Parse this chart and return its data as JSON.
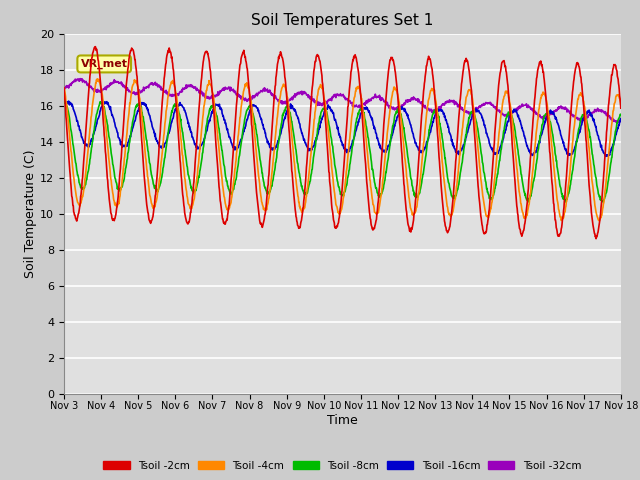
{
  "title": "Soil Temperatures Set 1",
  "xlabel": "Time",
  "ylabel": "Soil Temperature (C)",
  "ylim": [
    0,
    20
  ],
  "yticks": [
    0,
    2,
    4,
    6,
    8,
    10,
    12,
    14,
    16,
    18,
    20
  ],
  "annotation_text": "VR_met",
  "colors": {
    "Tsoil -2cm": "#dd0000",
    "Tsoil -4cm": "#ff8800",
    "Tsoil -8cm": "#00bb00",
    "Tsoil -16cm": "#0000cc",
    "Tsoil -32cm": "#9900bb"
  },
  "xtick_labels": [
    "Nov 3",
    "Nov 4",
    "Nov 5",
    "Nov 6",
    "Nov 7",
    "Nov 8",
    "Nov 9",
    "Nov 10",
    "Nov 11",
    "Nov 12",
    "Nov 13",
    "Nov 14",
    "Nov 15",
    "Nov 16",
    "Nov 17",
    "Nov 18"
  ],
  "line_width": 1.2,
  "fig_bg": "#cccccc",
  "ax_bg": "#e0e0e0"
}
